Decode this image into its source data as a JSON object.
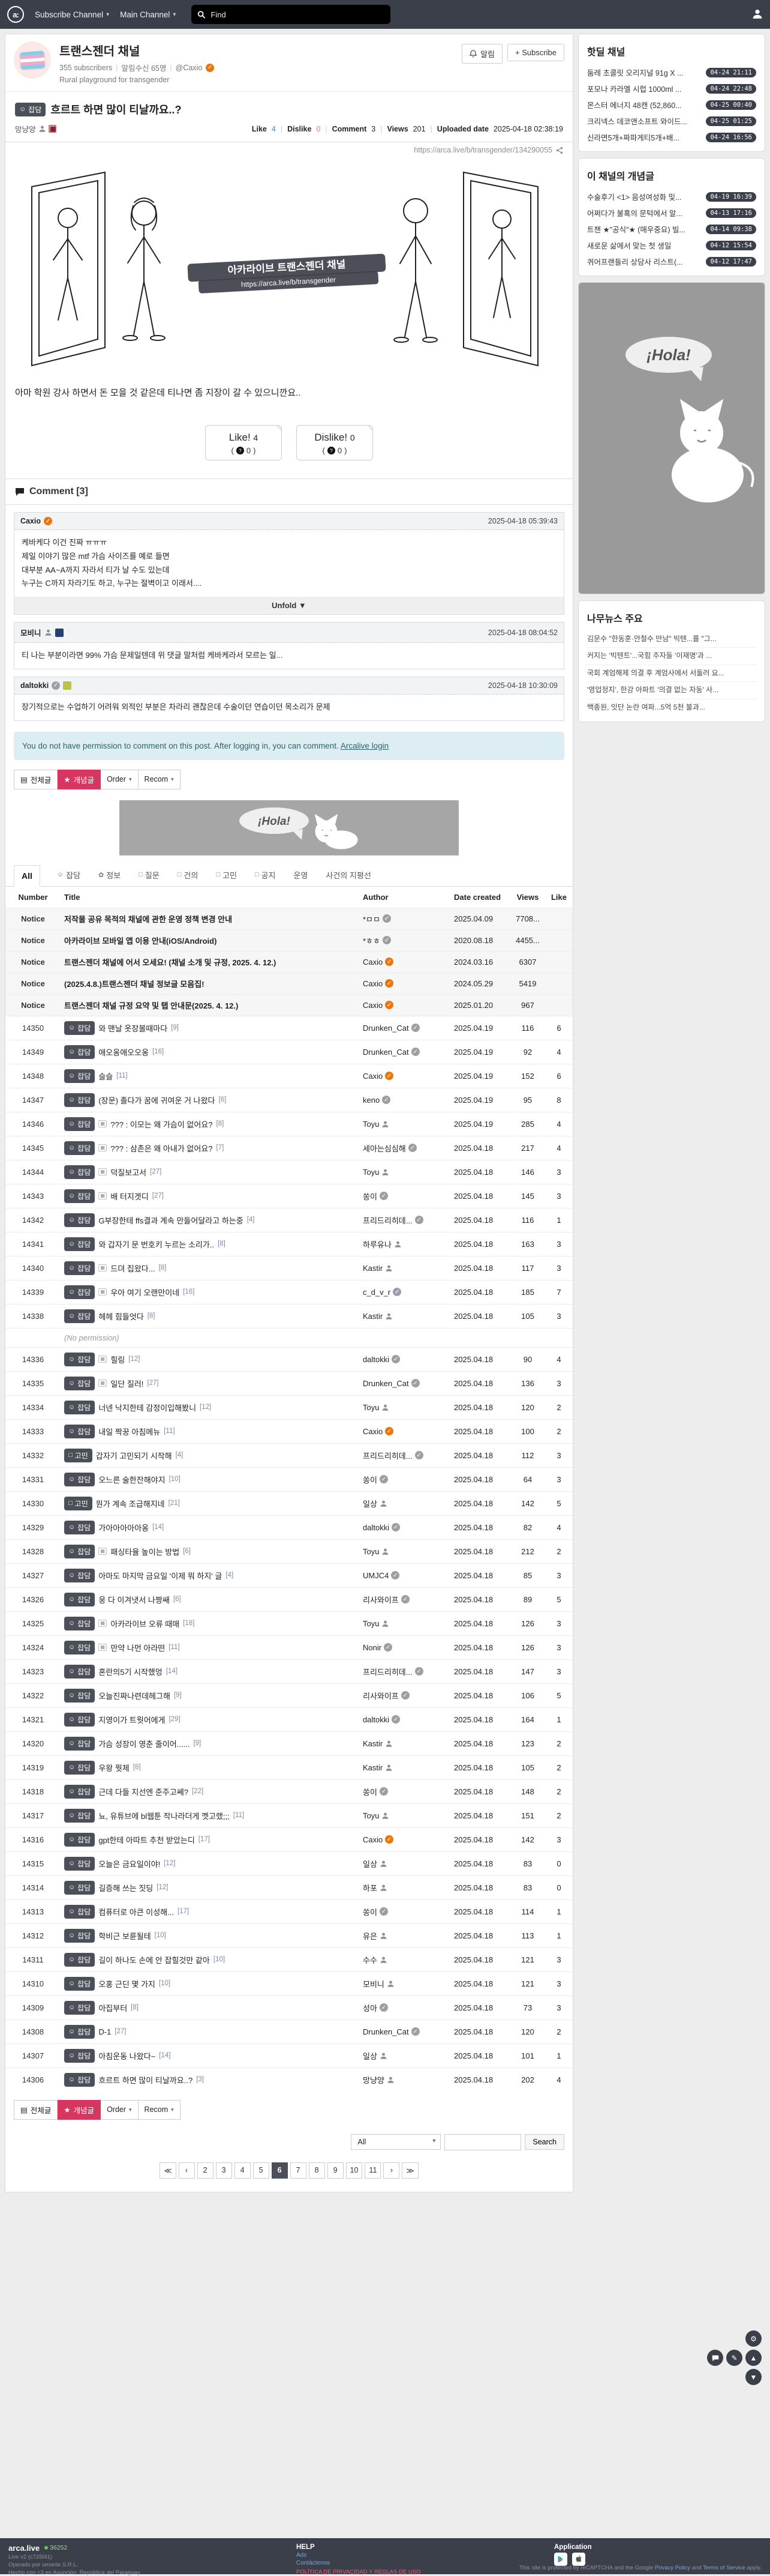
{
  "navbar": {
    "subscribe_channel": "Subscribe Channel",
    "main_channel": "Main Channel",
    "search_placeholder": "Find"
  },
  "channel": {
    "title": "트랜스젠더 채널",
    "subscribers": "355 subscribers",
    "alarm_count": "알림수신 65명",
    "owner": "@Caxio",
    "description": "Rural playground for transgender",
    "alarm_button": "알림",
    "subscribe_button": "+ Subscribe"
  },
  "post": {
    "category": "잡담",
    "title": "흐르트 하면 많이 티날까요..?",
    "author": "망냥양",
    "stats": {
      "like_label": "Like",
      "like": "4",
      "dislike_label": "Dislike",
      "dislike": "0",
      "comment_label": "Comment",
      "comment": "3",
      "views_label": "Views",
      "views": "201",
      "uploaded_label": "Uploaded date",
      "uploaded": "2025-04-18 02:38:19"
    },
    "share_url": "https://arca.live/b/transgender/134290055",
    "watermark_line1": "아카라이브 트랜스젠더 채널",
    "watermark_line2": "https://arca.live/b/transgender",
    "body": "아마 학원 강사 하면서 돈 모을 것 같은데 티나면 좀 지장이 갈 수 있으니깐요..",
    "like_button": "Like!",
    "like_count": "4",
    "like_sub": "0",
    "dislike_button": "Dislike!",
    "dislike_count": "0",
    "dislike_sub": "0"
  },
  "comments": {
    "header": "Comment [3]",
    "permission_notice": "You do not have permission to comment on this post. After logging in, you can comment.",
    "login_link": "Arcalive login",
    "list": [
      {
        "author": "Caxio",
        "badge": "check-orange",
        "date": "2025-04-18 05:39:43",
        "text": "케바케다 이건 진짜 ㅠㅠㅠ\n제일 이야기 많은 mtf 가슴 사이즈를 예로 들면\n대부분 AA~A까지 자라서 티가 날 수도 있는데\n누구는 C까지 자라기도 하고, 누구는 절벽이고 이래서....",
        "unfold": "Unfold ▼"
      },
      {
        "author": "모비니",
        "badge": "person",
        "badge_img": "#24406e",
        "date": "2025-04-18 08:04:52",
        "text": "티 나는 부분이라면 99% 가슴 문제일텐데 위 댓글 말처럼 케바케라서 모르는 일..."
      },
      {
        "author": "daltokki",
        "badge": "check-grey",
        "badge_img": "#b9c24a",
        "date": "2025-04-18 10:30:09",
        "text": "장기적으로는 수업하기 어려워 외적인 부분은 차라리 괜찮은데 수술이던 연습이던 목소리가 문제"
      }
    ]
  },
  "controls": {
    "all_posts": "전체글",
    "best_posts": "개념글",
    "order": "Order",
    "recom": "Recom"
  },
  "banner_text": "¡Hola!",
  "tabs": [
    {
      "label": "All",
      "icon": "",
      "active": true
    },
    {
      "label": "잡담",
      "icon": "☺"
    },
    {
      "label": "정보",
      "icon": "✿"
    },
    {
      "label": "질문",
      "icon": "□"
    },
    {
      "label": "건의",
      "icon": "□"
    },
    {
      "label": "고민",
      "icon": "□"
    },
    {
      "label": "공지",
      "icon": "□"
    },
    {
      "label": "운영",
      "icon": ""
    },
    {
      "label": "사건의 지평선",
      "icon": ""
    }
  ],
  "table": {
    "headers": {
      "number": "Number",
      "title": "Title",
      "author": "Author",
      "date": "Date created",
      "views": "Views",
      "like": "Like"
    },
    "no_permission": "(No permission)",
    "notices": [
      {
        "num": "Notice",
        "title": "저작물 공유 목적의 채널에 관한 운영 정책 변경 안내",
        "author": "*ㅁㅁ",
        "badge": "check-grey",
        "date": "2025.04.09",
        "views": "7708...",
        "like": ""
      },
      {
        "num": "Notice",
        "title": "아카라이브 모바일 앱 이용 안내(iOS/Android)",
        "author": "*ㅎㅎ",
        "badge": "check-grey",
        "date": "2020.08.18",
        "views": "4455...",
        "like": ""
      },
      {
        "num": "Notice",
        "title": "트랜스젠더 채널에 어서 오세요! (채널 소개 및 규정, 2025. 4. 12.)",
        "author": "Caxio",
        "badge": "check-orange",
        "date": "2024.03.16",
        "views": "6307",
        "like": ""
      },
      {
        "num": "Notice",
        "title": "(2025.4.8.)트랜스젠더 채널 정보글 모음집!",
        "author": "Caxio",
        "badge": "check-orange",
        "date": "2024.05.29",
        "views": "5419",
        "like": ""
      },
      {
        "num": "Notice",
        "title": "트랜스젠더 채널 규정 요약 및 탭 안내문(2025. 4. 12.)",
        "author": "Caxio",
        "badge": "check-orange",
        "date": "2025.01.20",
        "views": "967",
        "like": ""
      }
    ],
    "rows": [
      {
        "num": "14350",
        "cat": "잡담",
        "img": false,
        "title": "와 맨날 옷장볼때마다",
        "cc": "[9]",
        "author": "Drunken_Cat",
        "badge": "check-grey",
        "date": "2025.04.19",
        "views": "116",
        "like": "6"
      },
      {
        "num": "14349",
        "cat": "잡담",
        "img": false,
        "title": "애오옹애오오옹",
        "cc": "[16]",
        "author": "Drunken_Cat",
        "badge": "check-grey",
        "date": "2025.04.19",
        "views": "92",
        "like": "4"
      },
      {
        "num": "14348",
        "cat": "잡담",
        "img": false,
        "title": "슬슬",
        "cc": "[11]",
        "author": "Caxio",
        "badge": "check-orange",
        "date": "2025.04.19",
        "views": "152",
        "like": "6"
      },
      {
        "num": "14347",
        "cat": "잡담",
        "img": false,
        "title": "(장문) 졸다가 꿈에 귀여운 거 나왔다",
        "cc": "[6]",
        "author": "keno",
        "badge": "check-grey",
        "date": "2025.04.19",
        "views": "95",
        "like": "8"
      },
      {
        "num": "14346",
        "cat": "잡담",
        "img": true,
        "title": "??? : 이모는 왜 가슴이 없어요?",
        "cc": "[8]",
        "author": "Toyu",
        "badge": "person",
        "date": "2025.04.19",
        "views": "285",
        "like": "4"
      },
      {
        "num": "14345",
        "cat": "잡담",
        "img": true,
        "title": "??? : 삼촌은 왜 아내가 없어요?",
        "cc": "[7]",
        "author": "세아는심심해",
        "badge": "check-grey",
        "date": "2025.04.18",
        "views": "217",
        "like": "4"
      },
      {
        "num": "14344",
        "cat": "잡담",
        "img": true,
        "title": "덕질보고서",
        "cc": "[27]",
        "author": "Toyu",
        "badge": "person",
        "date": "2025.04.18",
        "views": "146",
        "like": "3"
      },
      {
        "num": "14343",
        "cat": "잡담",
        "img": true,
        "title": "배 터지겟디",
        "cc": "[27]",
        "author": "쏭이",
        "badge": "check-grey",
        "date": "2025.04.18",
        "views": "145",
        "like": "3"
      },
      {
        "num": "14342",
        "cat": "잡담",
        "img": false,
        "title": "G부장한테 ffs결과 계속 만들어달라고 하는중",
        "cc": "[4]",
        "author": "프리드리히데...",
        "badge": "check-grey",
        "date": "2025.04.18",
        "views": "116",
        "like": "1"
      },
      {
        "num": "14341",
        "cat": "잡담",
        "img": false,
        "title": "와 갑자기 문 번호키 누르는 소리가..",
        "cc": "[8]",
        "author": "하루유나",
        "badge": "person",
        "date": "2025.04.18",
        "views": "163",
        "like": "3"
      },
      {
        "num": "14340",
        "cat": "잡담",
        "img": true,
        "title": "드뎌 집왔다...",
        "cc": "[8]",
        "author": "Kastir",
        "badge": "person",
        "date": "2025.04.18",
        "views": "117",
        "like": "3"
      },
      {
        "num": "14339",
        "cat": "잡담",
        "img": true,
        "title": "우아 여기 오랜만이네",
        "cc": "[16]",
        "author": "c_d_v_r",
        "badge": "check-grey",
        "date": "2025.04.18",
        "views": "185",
        "like": "7"
      },
      {
        "num": "14338",
        "cat": "잡담",
        "img": false,
        "title": "헤헤 힘들엇다",
        "cc": "[8]",
        "author": "Kastir",
        "badge": "person",
        "date": "2025.04.18",
        "views": "105",
        "like": "3"
      },
      {
        "num": "",
        "noperm": true,
        "title": "(No permission)"
      },
      {
        "num": "14336",
        "cat": "잡담",
        "img": true,
        "title": "힐링",
        "cc": "[12]",
        "author": "daltokki",
        "badge": "check-grey",
        "date": "2025.04.18",
        "views": "90",
        "like": "4"
      },
      {
        "num": "14335",
        "cat": "잡담",
        "img": true,
        "title": "일단 질러!",
        "cc": "[27]",
        "author": "Drunken_Cat",
        "badge": "check-grey",
        "date": "2025.04.18",
        "views": "136",
        "like": "3"
      },
      {
        "num": "14334",
        "cat": "잡담",
        "img": false,
        "title": "너넨 낙지한테 감정이입해봤니",
        "cc": "[12]",
        "author": "Toyu",
        "badge": "person",
        "date": "2025.04.18",
        "views": "120",
        "like": "2"
      },
      {
        "num": "14333",
        "cat": "잡담",
        "img": false,
        "title": "내일 짝꿍 아침메뉴",
        "cc": "[11]",
        "author": "Caxio",
        "badge": "check-orange",
        "date": "2025.04.18",
        "views": "100",
        "like": "2"
      },
      {
        "num": "14332",
        "cat": "고민",
        "img": false,
        "title": "갑자기 고민되기 시작해",
        "cc": "[4]",
        "author": "프리드리히데...",
        "badge": "check-grey",
        "date": "2025.04.18",
        "views": "112",
        "like": "3"
      },
      {
        "num": "14331",
        "cat": "잡담",
        "img": false,
        "title": "오느른 술한잔해야지",
        "cc": "[10]",
        "author": "쏭이",
        "badge": "check-grey",
        "date": "2025.04.18",
        "views": "64",
        "like": "3"
      },
      {
        "num": "14330",
        "cat": "고민",
        "img": false,
        "title": "뭔가 계속 조급해지네",
        "cc": "[21]",
        "author": "일상",
        "badge": "person",
        "date": "2025.04.18",
        "views": "142",
        "like": "5"
      },
      {
        "num": "14329",
        "cat": "잡담",
        "img": false,
        "title": "가아아아아아옹",
        "cc": "[14]",
        "author": "daltokki",
        "badge": "check-grey",
        "date": "2025.04.18",
        "views": "82",
        "like": "4"
      },
      {
        "num": "14328",
        "cat": "잡담",
        "img": true,
        "title": "패싱타율 높이는 방법",
        "cc": "[6]",
        "author": "Toyu",
        "badge": "person",
        "date": "2025.04.18",
        "views": "212",
        "like": "2"
      },
      {
        "num": "14327",
        "cat": "잡담",
        "img": false,
        "title": "아마도 마지막 금요일 '이제 뭐 하지' 글",
        "cc": "[4]",
        "author": "UMJC4",
        "badge": "check-grey",
        "date": "2025.04.18",
        "views": "85",
        "like": "3"
      },
      {
        "num": "14326",
        "cat": "잡담",
        "img": false,
        "title": "웅 다 이겨냇서 나짱쌔",
        "cc": "[6]",
        "author": "리사와이프",
        "badge": "check-grey",
        "date": "2025.04.18",
        "views": "89",
        "like": "5"
      },
      {
        "num": "14325",
        "cat": "잡담",
        "img": true,
        "title": "아카라이브 오류 때매",
        "cc": "[18]",
        "author": "Toyu",
        "badge": "person",
        "date": "2025.04.18",
        "views": "126",
        "like": "3"
      },
      {
        "num": "14324",
        "cat": "잡담",
        "img": true,
        "title": "만약 나먼 아라떤",
        "cc": "[11]",
        "author": "Nonir",
        "badge": "check-grey",
        "date": "2025.04.18",
        "views": "126",
        "like": "3"
      },
      {
        "num": "14323",
        "cat": "잡담",
        "img": false,
        "title": "혼란의5기 시작했엉",
        "cc": "[14]",
        "author": "프리드리히데...",
        "badge": "check-grey",
        "date": "2025.04.18",
        "views": "147",
        "like": "3"
      },
      {
        "num": "14322",
        "cat": "잡담",
        "img": false,
        "title": "오늘진짜나련데헤그해",
        "cc": "[9]",
        "author": "리사와이프",
        "badge": "check-grey",
        "date": "2025.04.18",
        "views": "106",
        "like": "5"
      },
      {
        "num": "14321",
        "cat": "잡담",
        "img": false,
        "title": "지영이가 트웟어에게",
        "cc": "[29]",
        "author": "daltokki",
        "badge": "check-grey",
        "date": "2025.04.18",
        "views": "164",
        "like": "1"
      },
      {
        "num": "14320",
        "cat": "잡담",
        "img": false,
        "title": "가슴 성장이 영춘 줄이어......",
        "cc": "[9]",
        "author": "Kastir",
        "badge": "person",
        "date": "2025.04.18",
        "views": "123",
        "like": "2"
      },
      {
        "num": "14319",
        "cat": "잡담",
        "img": false,
        "title": "우왕 뭣체",
        "cc": "[8]",
        "author": "Kastir",
        "badge": "person",
        "date": "2025.04.18",
        "views": "105",
        "like": "2"
      },
      {
        "num": "14318",
        "cat": "잡담",
        "img": false,
        "title": "근데 다들 지선엔 준주고쎄?",
        "cc": "[22]",
        "author": "쏭이",
        "badge": "check-grey",
        "date": "2025.04.18",
        "views": "148",
        "like": "2"
      },
      {
        "num": "14317",
        "cat": "잡담",
        "img": false,
        "title": "뇨, 유튜브에 bl웹툰 작나라더게 껫고랬;;;",
        "cc": "[11]",
        "author": "Toyu",
        "badge": "person",
        "date": "2025.04.18",
        "views": "151",
        "like": "2"
      },
      {
        "num": "14316",
        "cat": "잡담",
        "img": false,
        "title": "gpt한테 아따트 추천 받았는디",
        "cc": "[17]",
        "author": "Caxio",
        "badge": "check-orange",
        "date": "2025.04.18",
        "views": "142",
        "like": "3"
      },
      {
        "num": "14315",
        "cat": "잡담",
        "img": false,
        "title": "오늘은 금요일이야!",
        "cc": "[12]",
        "author": "일상",
        "badge": "person",
        "date": "2025.04.18",
        "views": "83",
        "like": "0"
      },
      {
        "num": "14314",
        "cat": "잡담",
        "img": false,
        "title": "길증해 쓰는 짓딩",
        "cc": "[12]",
        "author": "하포",
        "badge": "person",
        "date": "2025.04.18",
        "views": "83",
        "like": "0"
      },
      {
        "num": "14313",
        "cat": "잡담",
        "img": false,
        "title": "컴퓨터로 아큰 이성해...",
        "cc": "[17]",
        "author": "쏭이",
        "badge": "check-grey",
        "date": "2025.04.18",
        "views": "114",
        "like": "1"
      },
      {
        "num": "14312",
        "cat": "잡담",
        "img": false,
        "title": "학비근 보륜될테",
        "cc": "[10]",
        "author": "유은",
        "badge": "person",
        "date": "2025.04.18",
        "views": "113",
        "like": "1"
      },
      {
        "num": "14311",
        "cat": "잡담",
        "img": false,
        "title": "길이 하나도 손에 안 잡힐것만 같아",
        "cc": "[10]",
        "author": "수수",
        "badge": "person",
        "date": "2025.04.18",
        "views": "121",
        "like": "3"
      },
      {
        "num": "14310",
        "cat": "잡담",
        "img": false,
        "title": "오홍 근딘 몇 가지",
        "cc": "[10]",
        "author": "모비니",
        "badge": "person",
        "date": "2025.04.18",
        "views": "121",
        "like": "3"
      },
      {
        "num": "14309",
        "cat": "잡담",
        "img": false,
        "title": "아집부터",
        "cc": "[8]",
        "author": "성아",
        "badge": "check-grey",
        "date": "2025.04.18",
        "views": "73",
        "like": "3"
      },
      {
        "num": "14308",
        "cat": "잡담",
        "img": false,
        "title": "D-1",
        "cc": "[27]",
        "author": "Drunken_Cat",
        "badge": "check-grey",
        "date": "2025.04.18",
        "views": "120",
        "like": "2"
      },
      {
        "num": "14307",
        "cat": "잡담",
        "img": false,
        "title": "아침운동 나왔다~",
        "cc": "[14]",
        "author": "일상",
        "badge": "person",
        "date": "2025.04.18",
        "views": "101",
        "like": "1"
      },
      {
        "num": "14306",
        "cat": "잡담",
        "img": false,
        "title": "흐르트 하면 많이 티날까요..?",
        "cc": "[3]",
        "author": "망냥양",
        "badge": "person",
        "date": "2025.04.18",
        "views": "202",
        "like": "4"
      }
    ]
  },
  "search": {
    "filter": "All",
    "button": "Search",
    "input_value": ""
  },
  "pagination": {
    "items": [
      "≪",
      "‹",
      "2",
      "3",
      "4",
      "5",
      "6",
      "7",
      "8",
      "9",
      "10",
      "11",
      "›",
      "≫"
    ],
    "current": "6"
  },
  "sidebar": {
    "hotdeal": {
      "title": "핫딜 채널",
      "items": [
        {
          "title": "둠레 초콜릿 오리지널 91g X ...",
          "time": "04-24 21:11"
        },
        {
          "title": "포모나 카라멜 시럽 1000ml ...",
          "time": "04-24 22:48"
        },
        {
          "title": "몬스터 에너지 48캔 (52,860...",
          "time": "04-25 00:40"
        },
        {
          "title": "크리넥스 데코앤소프트 와이드...",
          "time": "04-25 01:25"
        },
        {
          "title": "신라면5개+짜파게티5개+배...",
          "time": "04-24 16:56"
        }
      ]
    },
    "best": {
      "title": "이 채널의 개념글",
      "items": [
        {
          "title": "수술후기 <1> 음성여성화 및...",
          "time": "04-19 16:39"
        },
        {
          "title": "어쩌다가 불혹의 문턱에서 알...",
          "time": "04-13 17:16"
        },
        {
          "title": "트챈 ★\"공식\"★ (매우중요) 빌...",
          "time": "04-14 09:38"
        },
        {
          "title": "새로운 삶에서 맞는 첫 생일",
          "time": "04-12 15:54"
        },
        {
          "title": "퀴어프랜들리 상담사 리스트(...",
          "time": "04-12 17:47"
        }
      ]
    },
    "namu": {
      "title": "나무뉴스 주요",
      "items": [
        "김문수 \"한동훈·안철수 만남\" 빅텐...를 \"그...",
        "커지는 '빅텐트'...국힘 주자들 '이재명'과 ...",
        "국회 계엄해제 의결 후 계엄사에서 서둘러 요...",
        "'영업정지', 한강 아파트 '의결 없는 자동' 사...",
        "백종원, 잇단 논란 여파...5억 5천 불과..."
      ]
    }
  },
  "footer": {
    "brand": "arca.live",
    "online": "36252",
    "version": "Live v2 (c725f41)",
    "operator": "Operado por umanle S.R.L.",
    "made": "Hecho con <3 en Asunción, República del Paraguay",
    "help_header": "HELP",
    "links": {
      "ads": "Ads",
      "contact": "Contáctenos",
      "privacy": "POLÍTICA DE PRIVACIDAD Y REGLAS DE USO"
    },
    "app_header": "Application",
    "recaptcha_pre": "This site is protected by reCAPTCHA and the Google ",
    "recaptcha_privacy": "Privacy Policy",
    "recaptcha_mid": " and ",
    "recaptcha_terms": "Terms of Service",
    "recaptcha_post": " apply."
  }
}
